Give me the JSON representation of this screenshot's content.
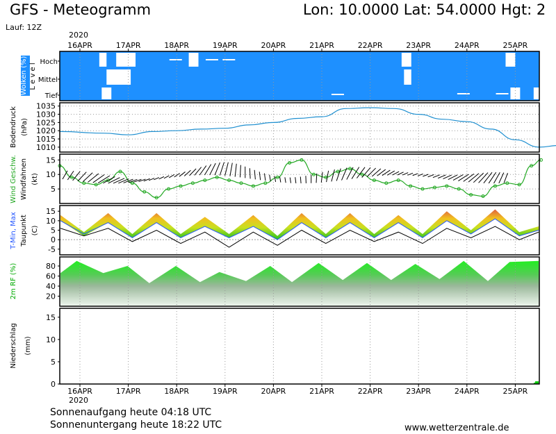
{
  "header": {
    "title": "GFS - Meteogramm",
    "coords": "Lon: 10.0000 Lat: 54.0000 Hgt: 2",
    "run": "Lauf: 12Z"
  },
  "footer": {
    "sunrise": "Sonnenaufgang heute 04:18 UTC",
    "sunset": "Sonnenuntergang heute 18:22 UTC",
    "site": "www.wetterzentrale.de"
  },
  "colors": {
    "cloud_bg": "#1e90ff",
    "pressure": "#1e8fd0",
    "wind": "#22a822",
    "tmin": "#2255ff",
    "tmax": "#ff2020",
    "dewpoint": "#000000",
    "rh": "#00dd00",
    "precip": "#00cc00"
  },
  "chart_data": [
    {
      "type": "area",
      "panel": "clouds",
      "ylabel": "Wolken (%)",
      "ylabel_side": "L e v e l",
      "levels": [
        "Hoch",
        "Mittel",
        "Tief"
      ],
      "dates": [
        "16APR",
        "17APR",
        "18APR",
        "19APR",
        "20APR",
        "21APR",
        "22APR",
        "23APR",
        "24APR",
        "25APR"
      ],
      "year": "2020",
      "clear_sky_gaps": [
        {
          "level": "Hoch",
          "from": 0.4,
          "to": 0.55
        },
        {
          "level": "Hoch",
          "from": 0.75,
          "to": 1.15
        },
        {
          "level": "Hoch",
          "from": 2.25,
          "to": 2.45
        },
        {
          "level": "Hoch",
          "from": 6.65,
          "to": 6.85
        },
        {
          "level": "Hoch",
          "from": 8.8,
          "to": 9.0
        },
        {
          "level": "Mittel",
          "from": 0.55,
          "to": 1.05
        },
        {
          "level": "Mittel",
          "from": 6.7,
          "to": 6.85
        },
        {
          "level": "Tief",
          "from": 0.45,
          "to": 0.65
        },
        {
          "level": "Tief",
          "from": 8.9,
          "to": 9.1
        },
        {
          "level": "Tief",
          "from": 9.38,
          "to": 9.55
        }
      ]
    },
    {
      "type": "line",
      "panel": "pressure",
      "ylabel": "Bodendruck (hPa)",
      "ylim": [
        1007,
        1037
      ],
      "yticks": [
        1010,
        1015,
        1020,
        1025,
        1030,
        1035
      ],
      "x": [
        0,
        0.5,
        1,
        1.5,
        2,
        2.5,
        3,
        3.5,
        4,
        4.5,
        5,
        5.5,
        6,
        6.5,
        7,
        7.5,
        8,
        8.5,
        9,
        9.5,
        9.9
      ],
      "values": [
        1019.5,
        1018.5,
        1017.5,
        1019.5,
        1020,
        1021,
        1021.5,
        1023.5,
        1025,
        1027.5,
        1028.5,
        1033.5,
        1034,
        1033.5,
        1030,
        1027,
        1025.5,
        1021,
        1014.5,
        1010,
        1011
      ]
    },
    {
      "type": "line",
      "panel": "wind",
      "ylabel": "Wind Geschw. (kt)",
      "ylabel_2": "Windfahnen",
      "ylim": [
        0,
        17
      ],
      "yticks": [
        5,
        10,
        15
      ],
      "x": [
        0,
        0.25,
        0.5,
        0.75,
        1.0,
        1.25,
        1.5,
        1.75,
        2.0,
        2.25,
        2.5,
        2.75,
        3.0,
        3.25,
        3.5,
        3.75,
        4.0,
        4.25,
        4.5,
        4.75,
        5.0,
        5.25,
        5.5,
        5.75,
        6.0,
        6.25,
        6.5,
        6.75,
        7.0,
        7.25,
        7.5,
        7.75,
        8.0,
        8.25,
        8.5,
        8.75,
        9.0,
        9.25,
        9.5,
        9.75,
        9.95
      ],
      "values": [
        13,
        9,
        7,
        6.5,
        8,
        11,
        7,
        4,
        2,
        5,
        6,
        7,
        8,
        9,
        8,
        7,
        6,
        7,
        9,
        14,
        15,
        10,
        9,
        11,
        12,
        10,
        8,
        7,
        8,
        6,
        5,
        5.5,
        6,
        5,
        3,
        2.5,
        6,
        7,
        6.5,
        13,
        15
      ]
    },
    {
      "type": "area",
      "panel": "temperature",
      "ylabel": "T-Min, Max (C)",
      "ylabel_2": "Taupunkt",
      "ylim": [
        -8,
        18
      ],
      "yticks": [
        -5,
        0,
        5,
        10,
        15
      ],
      "x": [
        0,
        0.5,
        1.0,
        1.5,
        2.0,
        2.5,
        3.0,
        3.5,
        4.0,
        4.5,
        5.0,
        5.5,
        6.0,
        6.5,
        7.0,
        7.5,
        8.0,
        8.5,
        9.0,
        9.5,
        9.9
      ],
      "series": [
        {
          "name": "T-Max",
          "values": [
            13,
            4,
            14,
            3,
            14,
            3,
            12,
            3,
            13,
            2,
            14,
            3,
            14,
            3,
            13,
            3,
            15,
            5,
            16,
            4,
            7
          ]
        },
        {
          "name": "T-Min",
          "values": [
            10,
            3,
            9,
            1,
            9,
            1,
            7,
            1,
            7,
            0,
            9,
            1,
            9,
            1,
            9,
            1,
            10,
            3,
            11,
            2,
            5
          ]
        },
        {
          "name": "Taupunkt",
          "values": [
            6,
            2,
            6,
            -1,
            5,
            -2,
            4,
            -4,
            4,
            -3,
            5,
            -2,
            5,
            -1,
            4,
            -2,
            6,
            1,
            7,
            0,
            4
          ]
        }
      ]
    },
    {
      "type": "area",
      "panel": "humidity",
      "ylabel": "2m RF (%)",
      "ylim": [
        0,
        98
      ],
      "yticks": [
        20,
        40,
        60,
        80
      ],
      "x": [
        0,
        0.35,
        0.9,
        1.4,
        1.85,
        2.4,
        2.9,
        3.3,
        3.85,
        4.35,
        4.8,
        5.35,
        5.85,
        6.35,
        6.85,
        7.35,
        7.85,
        8.35,
        8.85,
        9.3,
        9.9
      ],
      "values": [
        66,
        90,
        66,
        80,
        46,
        80,
        48,
        68,
        50,
        80,
        48,
        86,
        52,
        86,
        52,
        84,
        54,
        90,
        50,
        88,
        90
      ]
    },
    {
      "type": "bar",
      "panel": "precip",
      "ylabel": "Niederschlag (mm)",
      "ylim": [
        0,
        17
      ],
      "yticks": [
        0,
        5,
        10,
        15
      ],
      "x": [
        9.8,
        9.9
      ],
      "values": [
        0.3,
        0.6
      ]
    }
  ]
}
